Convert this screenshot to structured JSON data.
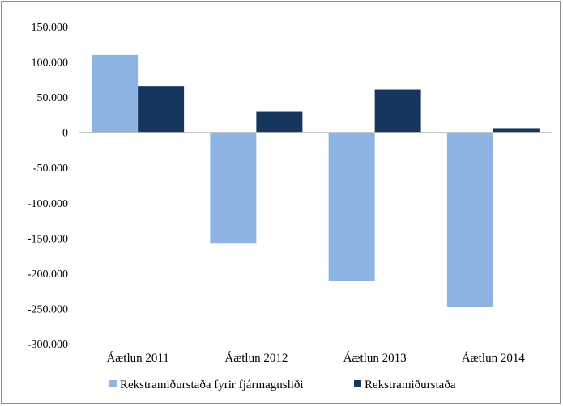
{
  "chart_data": {
    "type": "bar",
    "categories": [
      "Áætlun 2011",
      "Áætlun 2012",
      "Áætlun 2013",
      "Áætlun 2014"
    ],
    "series": [
      {
        "name": "Rekstramiðurstaða fyrir fjármagnsliði",
        "color": "#8db3e2",
        "values": [
          110000,
          -158000,
          -211000,
          -248000
        ]
      },
      {
        "name": "Rekstramiðurstaða",
        "color": "#17365d",
        "values": [
          66000,
          30000,
          61000,
          6000
        ]
      }
    ],
    "yticks": [
      "150.000",
      "100.000",
      "50.000",
      "0",
      "-50.000",
      "-100.000",
      "-150.000",
      "-200.000",
      "-250.000",
      "-300.000"
    ],
    "ylim": [
      -300000,
      150000
    ],
    "grid": false,
    "legend_position": "bottom",
    "title": "",
    "xlabel": "",
    "ylabel": ""
  }
}
